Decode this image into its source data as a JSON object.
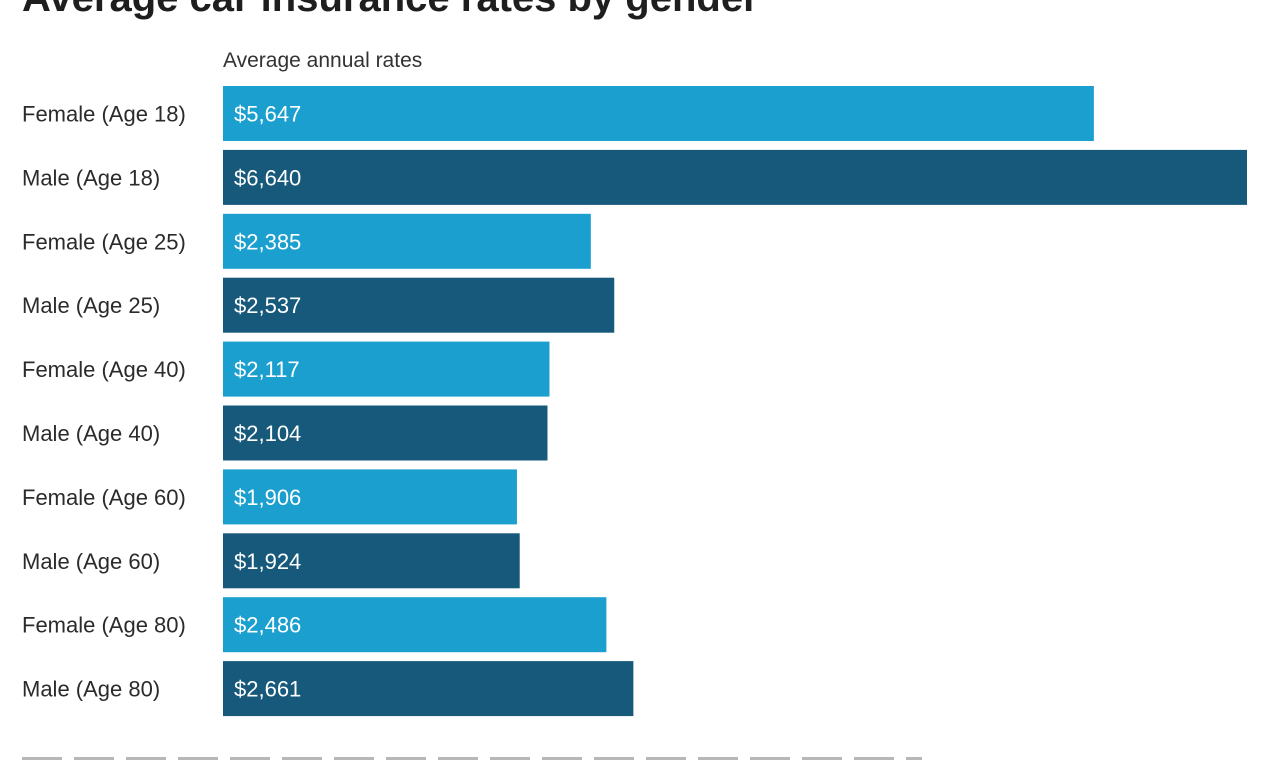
{
  "chart_data": {
    "type": "bar",
    "orientation": "horizontal",
    "title": "Average car insurance rates by gender",
    "subtitle": "Average annual rates",
    "categories": [
      "Female (Age 18)",
      "Male (Age 18)",
      "Female (Age 25)",
      "Male (Age 25)",
      "Female (Age 40)",
      "Male (Age 40)",
      "Female (Age 60)",
      "Male (Age 60)",
      "Female (Age 80)",
      "Male (Age 80)"
    ],
    "values": [
      5647,
      6640,
      2385,
      2537,
      2117,
      2104,
      1906,
      1924,
      2486,
      2661
    ],
    "value_labels": [
      "$5,647",
      "$6,640",
      "$2,385",
      "$2,537",
      "$2,117",
      "$2,104",
      "$1,906",
      "$1,924",
      "$2,486",
      "$2,661"
    ],
    "xlim": [
      0,
      6640
    ],
    "grid": false,
    "legend": "none",
    "colors": {
      "female": "#1b9fcf",
      "male": "#17597a"
    }
  }
}
